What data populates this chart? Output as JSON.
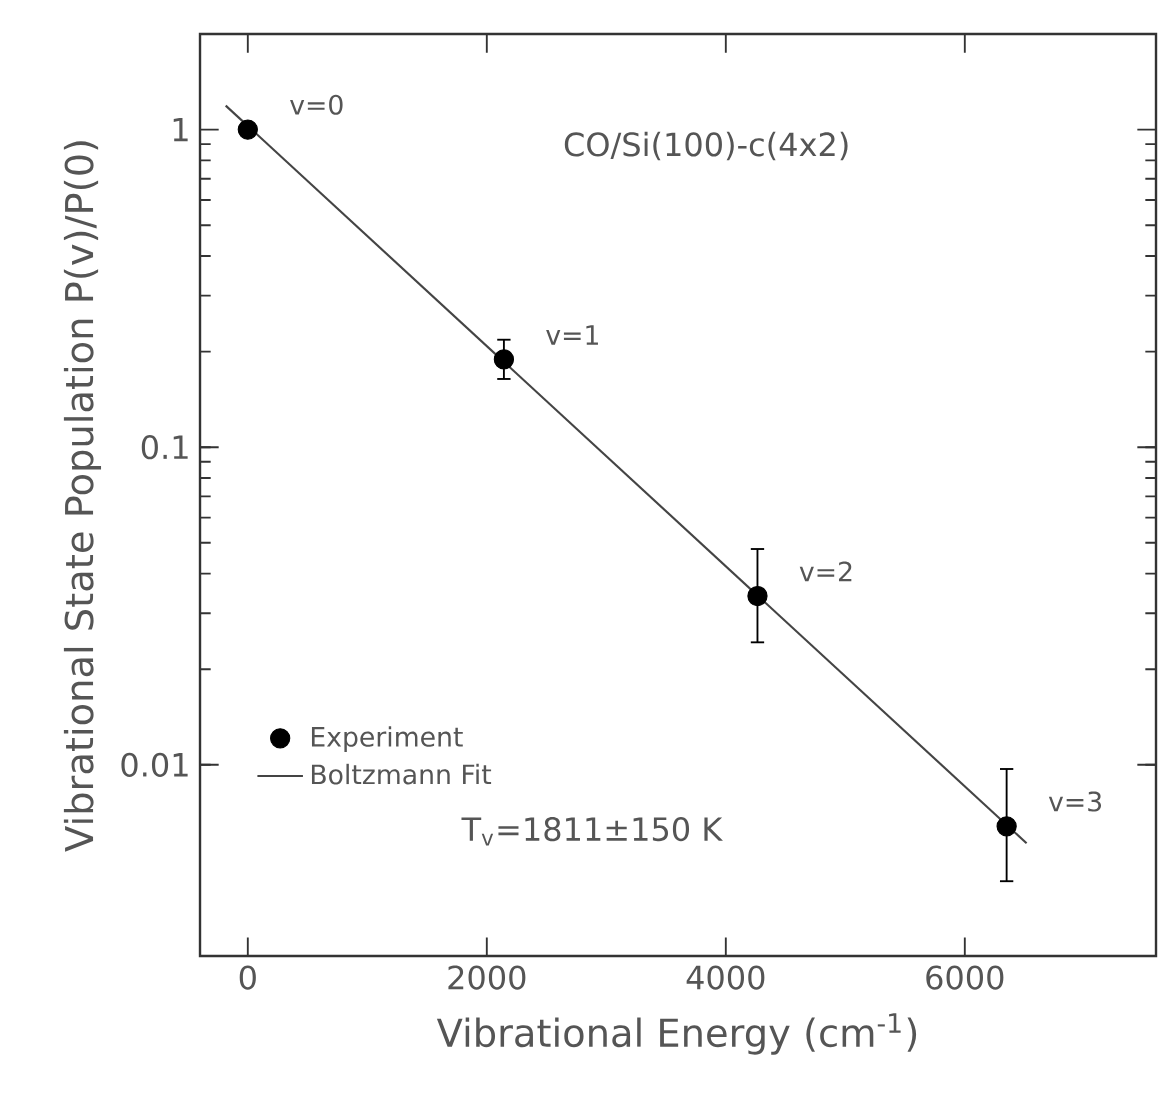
{
  "chart_data": {
    "type": "scatter",
    "xlabel": "Vibrational Energy (cm$^{-1}$)",
    "ylabel": "Vibrational State Population P(v)/P(0)",
    "log": "y",
    "xlim": [
      -400,
      7600
    ],
    "ylim": [
      0.0025,
      2
    ],
    "xticks": [
      0,
      2000,
      4000,
      6000
    ],
    "yticks": [
      0.01,
      0.1,
      1
    ],
    "series": [
      {
        "name": "Experiment",
        "color": "#000000",
        "marker": "circle",
        "x": [
          0,
          2143,
          4265,
          6350
        ],
        "values": [
          1,
          0.189,
          0.034,
          0.0064
        ],
        "errors": [
          null,
          [
            0.164,
            0.218
          ],
          [
            0.0243,
            0.0478
          ],
          [
            0.0043,
            0.0097
          ]
        ]
      },
      {
        "name": "Boltzmann Fit",
        "type": "line",
        "color": "#444444",
        "line_style": "solid",
        "marker": "none",
        "x": [
          -185,
          6517
        ],
        "values": [
          1.19,
          0.00566
        ]
      }
    ],
    "legend": "bottom left",
    "annotations": [
      "CO/Si(100)-c(4x2)",
      {
        "text": "v=0",
        "x": 0,
        "y": 1
      },
      {
        "text": "v=1",
        "x": 2143,
        "y": 0.189
      },
      {
        "text": "v=2",
        "x": 4265,
        "y": 0.034
      },
      {
        "text": "v=3",
        "x": 6350,
        "y": 0.0064
      },
      "T$_{v}$=1811±150 K"
    ]
  }
}
